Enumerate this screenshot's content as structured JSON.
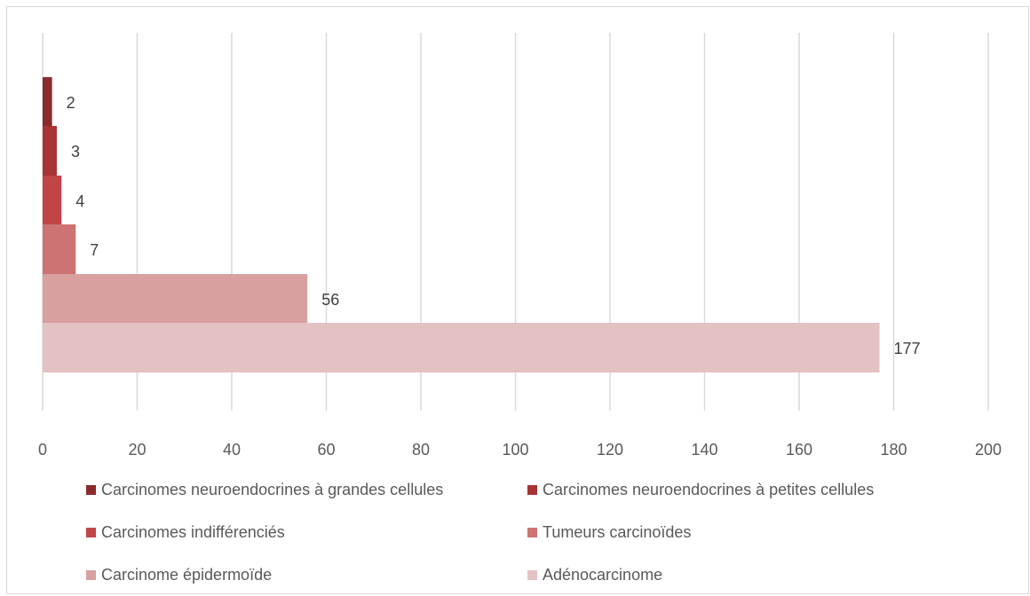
{
  "chart_data": {
    "type": "bar",
    "orientation": "horizontal",
    "title": "",
    "xlabel": "",
    "ylabel": "",
    "xlim": [
      0,
      200
    ],
    "x_ticks": [
      "0",
      "20",
      "40",
      "60",
      "80",
      "100",
      "120",
      "140",
      "160",
      "180",
      "200"
    ],
    "grid": "vertical",
    "legend_position": "bottom",
    "series": [
      {
        "name": "Carcinomes neuroendocrines à grandes cellules",
        "value": 2,
        "label": "2",
        "color": "#8b2c2c"
      },
      {
        "name": "Carcinomes neuroendocrines à petites cellules",
        "value": 3,
        "label": "3",
        "color": "#a83434"
      },
      {
        "name": "Carcinomes indifférenciés",
        "value": 4,
        "label": "4",
        "color": "#c24545"
      },
      {
        "name": "Tumeurs carcinoïdes",
        "value": 7,
        "label": "7",
        "color": "#cd7373"
      },
      {
        "name": "Carcinome épidermoïde",
        "value": 56,
        "label": "56",
        "color": "#d9a0a0"
      },
      {
        "name": "Adénocarcinome",
        "value": 177,
        "label": "177",
        "color": "#e3c2c4"
      }
    ]
  }
}
